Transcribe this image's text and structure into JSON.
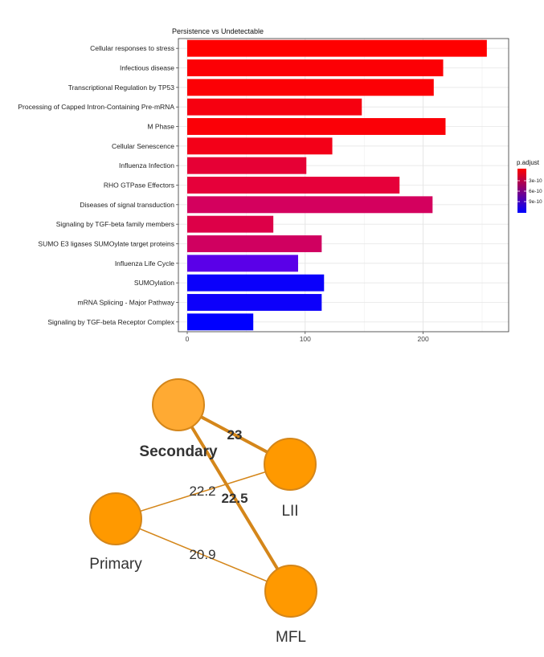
{
  "chart_data": [
    {
      "type": "bar",
      "orientation": "horizontal",
      "title": "Persistence vs Undetectable",
      "xlabel": "",
      "ylabel": "",
      "xlim": [
        0,
        265
      ],
      "xticks": [
        0,
        100,
        200
      ],
      "grid": true,
      "categories": [
        "Cellular responses to stress",
        "Infectious disease",
        "Transcriptional Regulation by TP53",
        "Processing of Capped Intron-Containing Pre-mRNA",
        "M Phase",
        "Cellular Senescence",
        "Influenza Infection",
        "RHO GTPase Effectors",
        "Diseases of signal transduction",
        "Signaling by TGF-beta family members",
        "SUMO E3 ligases SUMOylate target proteins",
        "Influenza Life Cycle",
        "SUMOylation",
        "mRNA Splicing - Major Pathway",
        "Signaling by TGF-beta Receptor Complex"
      ],
      "values": [
        254,
        217,
        209,
        148,
        219,
        123,
        101,
        180,
        208,
        73,
        114,
        94,
        116,
        114,
        56
      ],
      "bar_colors": [
        "#ff0000",
        "#fc0005",
        "#fc0005",
        "#f60010",
        "#fb0007",
        "#f30018",
        "#e60035",
        "#e6003a",
        "#d4005e",
        "#dd0048",
        "#d00060",
        "#5a00e8",
        "#0a00fb",
        "#0d00fa",
        "#0000ff"
      ],
      "legend": {
        "title": "p.adjust",
        "placement": "right",
        "ticks": [
          "3e-10",
          "6e-10",
          "9e-10"
        ],
        "colors": [
          "#ff0000",
          "#0000ff"
        ]
      }
    },
    {
      "type": "network",
      "nodes": [
        {
          "id": "Secondary",
          "label": "Secondary",
          "bold": true,
          "color": "#ffaa33"
        },
        {
          "id": "LII",
          "label": "LII",
          "bold": false,
          "color": "#ff9900"
        },
        {
          "id": "Primary",
          "label": "Primary",
          "bold": false,
          "color": "#ff9900"
        },
        {
          "id": "MFL",
          "label": "MFL",
          "bold": false,
          "color": "#ff9900"
        }
      ],
      "edges": [
        {
          "source": "Secondary",
          "target": "LII",
          "value": "23",
          "bold": true
        },
        {
          "source": "Secondary",
          "target": "MFL",
          "value": "22.5",
          "bold": true
        },
        {
          "source": "Primary",
          "target": "LII",
          "value": "22.2",
          "bold": false
        },
        {
          "source": "Primary",
          "target": "MFL",
          "value": "20.9",
          "bold": false
        }
      ],
      "edge_color": "#d4861a"
    }
  ]
}
